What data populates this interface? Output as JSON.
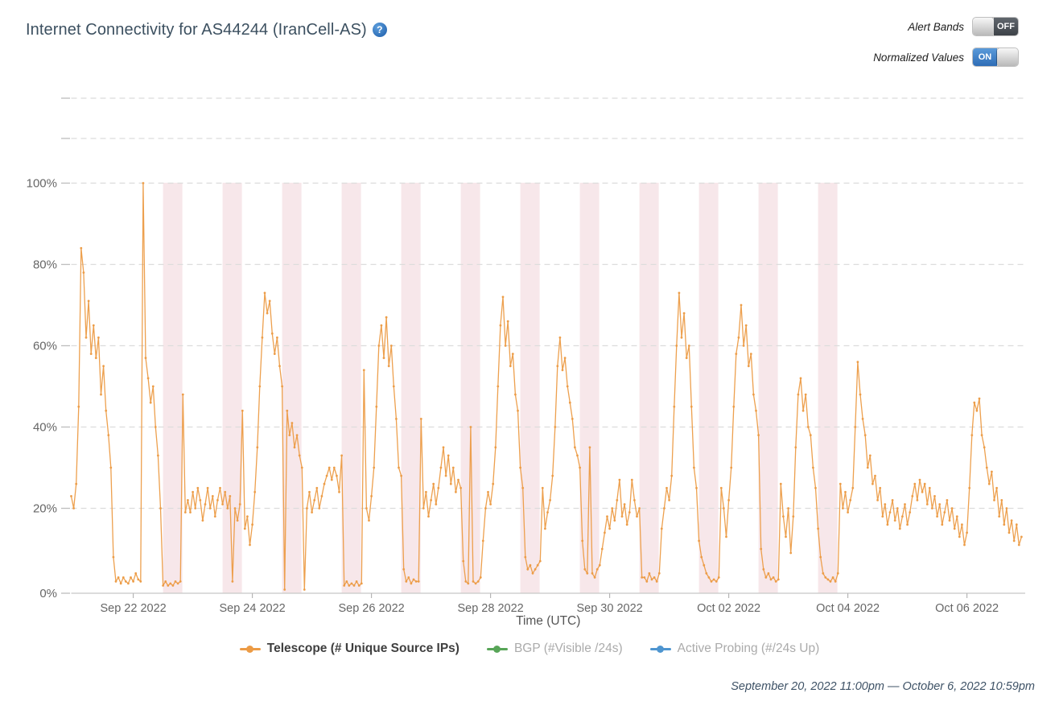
{
  "header": {
    "title": "Internet Connectivity for AS44244 (IranCell-AS)",
    "help_icon": "?"
  },
  "controls": {
    "alert_bands_label": "Alert Bands",
    "alert_bands_state": "OFF",
    "normalized_label": "Normalized Values",
    "normalized_state": "ON"
  },
  "colors": {
    "line_orange": "#EC9B45",
    "bgp_green": "#58A558",
    "probe_blue": "#4E95D0",
    "band_pink": "#F7E7EA",
    "accent_blue": "#3573B9",
    "grid_gray": "#DCDCDC",
    "axis_gray": "#C8C8C8",
    "label_gray": "#666666"
  },
  "legend": {
    "items": [
      {
        "label": "Telescope (# Unique Source IPs)",
        "color": "#EC9B45",
        "emphasis": true
      },
      {
        "label": "BGP (#Visible /24s)",
        "color": "#58A558",
        "emphasis": false
      },
      {
        "label": "Active Probing (#/24s Up)",
        "color": "#4E95D0",
        "emphasis": false
      }
    ]
  },
  "footer": {
    "date_range": "September 20, 2022 11:00pm — October 6, 2022 10:59pm"
  },
  "chart_data": {
    "type": "line",
    "title": "Internet Connectivity for AS44244 (IranCell-AS)",
    "xlabel": "Time (UTC)",
    "ylabel": "",
    "x_start_utc": "2022-09-20 23:00",
    "x_end_utc": "2022-10-06 22:59",
    "x_unit": "hours since start",
    "ylim": [
      0,
      100
    ],
    "grid": "dashed-horizontal",
    "y_ticks": [
      {
        "label": "0%",
        "value": 0
      },
      {
        "label": "20%",
        "value": 20
      },
      {
        "label": "40%",
        "value": 40
      },
      {
        "label": "60%",
        "value": 60
      },
      {
        "label": "80%",
        "value": 80
      },
      {
        "label": "100%",
        "value": 100
      }
    ],
    "x_ticks": [
      {
        "label": "Sep 22 2022",
        "hour": 25
      },
      {
        "label": "Sep 24 2022",
        "hour": 73
      },
      {
        "label": "Sep 26 2022",
        "hour": 121
      },
      {
        "label": "Sep 28 2022",
        "hour": 169
      },
      {
        "label": "Sep 30 2022",
        "hour": 217
      },
      {
        "label": "Oct 02 2022",
        "hour": 265
      },
      {
        "label": "Oct 04 2022",
        "hour": 313
      },
      {
        "label": "Oct 06 2022",
        "hour": 361
      }
    ],
    "alert_bands": {
      "note": "recurring daily shaded windows",
      "start_hour": 37,
      "interval_hours": 24,
      "duration_hours": 7.8,
      "count": 12,
      "color": "#F7E7EA"
    },
    "series": [
      {
        "name": "Telescope (# Unique Source IPs)",
        "color": "#EC9B45",
        "unit": "% normalized",
        "values_hourly": [
          23,
          20,
          26,
          45,
          84,
          78,
          62,
          71,
          58,
          65,
          57,
          62,
          48,
          55,
          44,
          38,
          30,
          8,
          2,
          3,
          1.5,
          3,
          2,
          1.5,
          3,
          2,
          4,
          2.5,
          2,
          100,
          57,
          52,
          46,
          50,
          40,
          33,
          20,
          1,
          2,
          1,
          1.5,
          1,
          2,
          1.5,
          2,
          48,
          19,
          22,
          19,
          24,
          20,
          25,
          22,
          17,
          21,
          25,
          20,
          23,
          18,
          22,
          25,
          21,
          24,
          20,
          23,
          2,
          20,
          17,
          21,
          44,
          15,
          18,
          11,
          16,
          24,
          35,
          50,
          62,
          73,
          68,
          71,
          63,
          58,
          62,
          55,
          50,
          0,
          44,
          38,
          41,
          35,
          38,
          33,
          30,
          0,
          20,
          24,
          19,
          22,
          25,
          20,
          23,
          26,
          28,
          30,
          27,
          30,
          28,
          24,
          33,
          1,
          2,
          1,
          1.5,
          1,
          2,
          1,
          1.5,
          54,
          20,
          17,
          23,
          30,
          45,
          60,
          65,
          57,
          67,
          55,
          60,
          50,
          42,
          30,
          28,
          5,
          2,
          3,
          1.5,
          2.5,
          2,
          2,
          42,
          20,
          24,
          18,
          22,
          26,
          21,
          25,
          30,
          35,
          28,
          33,
          26,
          30,
          24,
          27,
          25,
          7,
          2,
          1.5,
          40,
          2,
          1.5,
          2,
          3,
          12,
          20,
          24,
          21,
          26,
          35,
          50,
          65,
          72,
          60,
          66,
          55,
          58,
          48,
          44,
          30,
          25,
          8,
          5,
          6,
          4,
          5,
          6,
          7,
          25,
          15,
          19,
          22,
          28,
          40,
          55,
          62,
          54,
          57,
          50,
          46,
          42,
          35,
          33,
          30,
          12,
          5,
          4,
          35,
          4,
          3,
          5,
          6,
          10,
          14,
          18,
          15,
          20,
          17,
          22,
          27,
          18,
          21,
          16,
          19,
          27,
          22,
          18,
          20,
          3,
          3,
          2,
          4,
          2.5,
          3,
          2,
          4,
          15,
          20,
          25,
          22,
          28,
          45,
          60,
          73,
          62,
          68,
          57,
          60,
          45,
          30,
          25,
          12,
          8,
          6,
          4,
          3,
          2,
          2.5,
          2,
          3,
          25,
          20,
          13,
          22,
          30,
          45,
          58,
          62,
          70,
          60,
          65,
          55,
          58,
          48,
          44,
          38,
          10,
          5,
          3,
          4,
          2.5,
          3,
          2,
          2.5,
          26,
          18,
          13,
          20,
          9,
          18,
          35,
          48,
          52,
          44,
          48,
          40,
          38,
          30,
          25,
          15,
          8,
          4,
          3,
          2.5,
          2,
          3,
          2,
          4,
          26,
          20,
          24,
          19,
          22,
          25,
          40,
          56,
          48,
          42,
          38,
          30,
          33,
          26,
          28,
          22,
          25,
          18,
          21,
          16,
          19,
          22,
          17,
          20,
          15,
          18,
          21,
          16,
          19,
          23,
          26,
          22,
          27,
          24,
          26,
          21,
          25,
          20,
          23,
          18,
          21,
          16,
          19,
          22,
          17,
          20,
          15,
          18,
          13,
          16,
          11,
          14,
          25,
          38,
          46,
          44,
          47,
          38,
          35,
          30,
          26,
          29,
          22,
          25,
          18,
          22,
          16,
          20,
          14,
          17,
          12,
          16,
          11,
          13
        ]
      },
      {
        "name": "BGP (#Visible /24s)",
        "color": "#58A558",
        "unit": "% normalized",
        "values_hourly": []
      },
      {
        "name": "Active Probing (#/24s Up)",
        "color": "#4E95D0",
        "unit": "% normalized",
        "values_hourly": []
      }
    ]
  }
}
